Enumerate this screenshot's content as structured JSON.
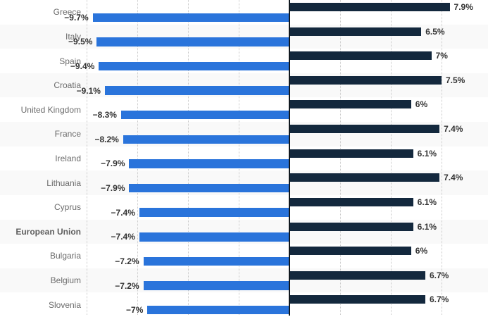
{
  "chart_data": {
    "type": "bar",
    "orientation": "horizontal-diverging",
    "title": "",
    "xlabel": "",
    "ylabel": "",
    "legend_visible": false,
    "grid": "vertical-dotted",
    "axis": {
      "min": -10,
      "max": 10,
      "gridline_step_percent": 2.5,
      "gridline_values": [
        -10,
        -7.5,
        -5,
        -2.5,
        2.5,
        5,
        7.5
      ]
    },
    "series": [
      {
        "name": "positive-series",
        "color": "#13283d"
      },
      {
        "name": "negative-series",
        "color": "#2a74db"
      }
    ],
    "categories": [
      "Greece",
      "Italy",
      "Spain",
      "Croatia",
      "United Kingdom",
      "France",
      "Ireland",
      "Lithuania",
      "Cyprus",
      "European Union",
      "Bulgaria",
      "Belgium",
      "Slovenia"
    ],
    "rows": [
      {
        "country": "Greece",
        "bold": false,
        "positive": 7.9,
        "positive_label": "7.9%",
        "negative": -9.7,
        "negative_label": "−9.7%"
      },
      {
        "country": "Italy",
        "bold": false,
        "positive": 6.5,
        "positive_label": "6.5%",
        "negative": -9.5,
        "negative_label": "−9.5%"
      },
      {
        "country": "Spain",
        "bold": false,
        "positive": 7.0,
        "positive_label": "7%",
        "negative": -9.4,
        "negative_label": "−9.4%"
      },
      {
        "country": "Croatia",
        "bold": false,
        "positive": 7.5,
        "positive_label": "7.5%",
        "negative": -9.1,
        "negative_label": "−9.1%"
      },
      {
        "country": "United Kingdom",
        "bold": false,
        "positive": 6.0,
        "positive_label": "6%",
        "negative": -8.3,
        "negative_label": "−8.3%"
      },
      {
        "country": "France",
        "bold": false,
        "positive": 7.4,
        "positive_label": "7.4%",
        "negative": -8.2,
        "negative_label": "−8.2%"
      },
      {
        "country": "Ireland",
        "bold": false,
        "positive": 6.1,
        "positive_label": "6.1%",
        "negative": -7.9,
        "negative_label": "−7.9%"
      },
      {
        "country": "Lithuania",
        "bold": false,
        "positive": 7.4,
        "positive_label": "7.4%",
        "negative": -7.9,
        "negative_label": "−7.9%"
      },
      {
        "country": "Cyprus",
        "bold": false,
        "positive": 6.1,
        "positive_label": "6.1%",
        "negative": -7.4,
        "negative_label": "−7.4%"
      },
      {
        "country": "European Union",
        "bold": true,
        "positive": 6.1,
        "positive_label": "6.1%",
        "negative": -7.4,
        "negative_label": "−7.4%"
      },
      {
        "country": "Bulgaria",
        "bold": false,
        "positive": 6.0,
        "positive_label": "6%",
        "negative": -7.2,
        "negative_label": "−7.2%"
      },
      {
        "country": "Belgium",
        "bold": false,
        "positive": 6.7,
        "positive_label": "6.7%",
        "negative": -7.2,
        "negative_label": "−7.2%"
      },
      {
        "country": "Slovenia",
        "bold": false,
        "positive": 6.7,
        "positive_label": "6.7%",
        "negative": -7.0,
        "negative_label": "−7%"
      }
    ]
  },
  "style": {
    "positive_bar_color": "#13283d",
    "negative_bar_color": "#2a74db",
    "alt_band_color": "#f9f9f9",
    "band_color": "#ffffff",
    "gridline_color": "#c9c9c9",
    "axis_color": "#10181f",
    "country_label_color": "#6b6b6b",
    "value_label_color": "#333333"
  }
}
